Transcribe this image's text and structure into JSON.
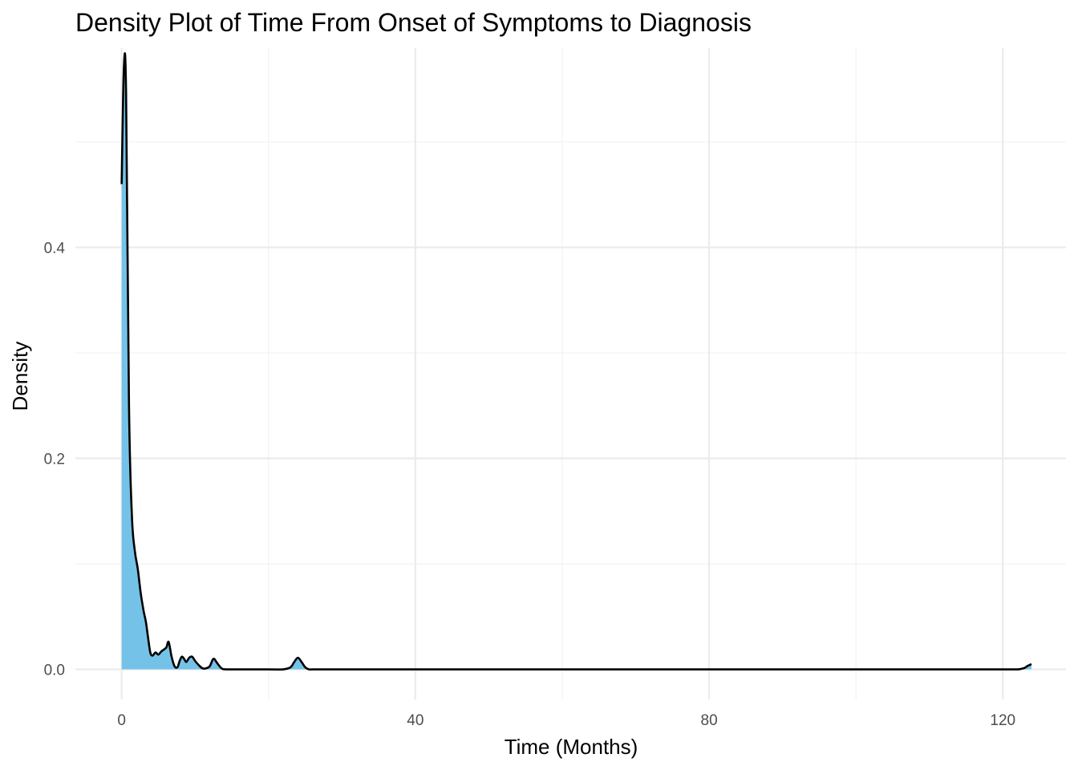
{
  "chart_data": {
    "type": "area",
    "title": "Density Plot of Time From Onset of Symptoms to Diagnosis",
    "xlabel": "Time (Months)",
    "ylabel": "Density",
    "xlim": [
      -6.3,
      128.6
    ],
    "ylim": [
      -0.0285,
      0.5889
    ],
    "x_ticks": [
      0,
      40,
      80,
      120
    ],
    "x_tick_labels": [
      "0",
      "40",
      "80",
      "120"
    ],
    "y_ticks": [
      0.0,
      0.2,
      0.4
    ],
    "y_tick_labels": [
      "0.0",
      "0.2",
      "0.4"
    ],
    "x_minor": [
      20,
      60,
      100
    ],
    "y_minor": [
      0.1,
      0.3,
      0.5
    ],
    "grid": true,
    "legend": "none",
    "colors": {
      "fill": "#74c2e8",
      "line": "#000000",
      "grid_major": "#ebebeb",
      "grid_minor": "#f2f2f2"
    },
    "series": [
      {
        "x": [
          0,
          0.3,
          0.6,
          1.0,
          1.4,
          1.8,
          2.2,
          2.6,
          3.0,
          3.3,
          3.6,
          3.9,
          4.2,
          4.6,
          5.0,
          5.4,
          5.8,
          6.1,
          6.4,
          6.8,
          7.2,
          7.6,
          7.9,
          8.2,
          8.5,
          8.8,
          9.2,
          9.6,
          10.0,
          10.5,
          11.0,
          11.5,
          12.0,
          12.5,
          13.0,
          13.6,
          14.2,
          16,
          20,
          22,
          23,
          23.5,
          24,
          24.5,
          25,
          25.5,
          26,
          28,
          40,
          60,
          80,
          100,
          110,
          120,
          122,
          122.5,
          123,
          123.3,
          123.6,
          123.9
        ],
        "y": [
          0.46,
          0.57,
          0.547,
          0.25,
          0.145,
          0.112,
          0.095,
          0.072,
          0.055,
          0.045,
          0.03,
          0.016,
          0.013,
          0.016,
          0.014,
          0.017,
          0.019,
          0.021,
          0.026,
          0.012,
          0.003,
          0.002,
          0.008,
          0.012,
          0.01,
          0.007,
          0.011,
          0.012,
          0.008,
          0.004,
          0.001,
          0.001,
          0.003,
          0.01,
          0.006,
          0.001,
          0.0,
          0.0,
          0.0,
          0.0,
          0.002,
          0.007,
          0.011,
          0.007,
          0.002,
          0.0,
          0.0,
          0.0,
          0.0,
          0.0,
          0.0,
          0.0,
          0.0,
          0.0,
          0.0,
          0.0005,
          0.0015,
          0.003,
          0.004,
          0.005
        ]
      }
    ]
  }
}
